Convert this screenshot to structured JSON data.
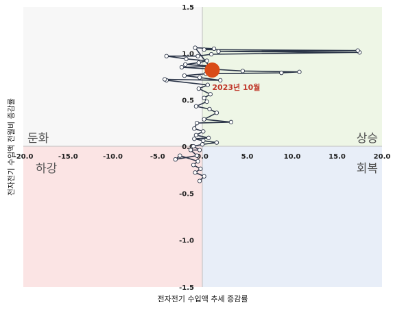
{
  "chart_data": {
    "type": "scatter",
    "title": "",
    "xlabel": "전자전기 수입액 추세 증감률",
    "ylabel": "전자전기 수입액 전월비 증감률",
    "xlim": [
      -20,
      20
    ],
    "ylim": [
      -1.5,
      1.5
    ],
    "x_ticks": [
      "-20.0",
      "-15.0",
      "-10.0",
      "-5.0",
      "0.0",
      "5.0",
      "10.0",
      "15.0",
      "20.0"
    ],
    "y_ticks": [
      "1.5",
      "1.0",
      "0.5",
      "0.0",
      "-0.5",
      "-1.0",
      "-1.5"
    ],
    "x_tick_values": [
      -20,
      -15,
      -10,
      -5,
      0,
      5,
      10,
      15,
      20
    ],
    "y_tick_values": [
      1.5,
      1.0,
      0.5,
      0.0,
      -0.5,
      -1.0,
      -1.5
    ],
    "grid": false,
    "quadrants": {
      "top_left": {
        "label": "둔화",
        "color": "#f7f7f7"
      },
      "top_right": {
        "label": "상승",
        "color": "#eef6e6"
      },
      "bottom_left": {
        "label": "하강",
        "color": "#fbe4e4"
      },
      "bottom_right": {
        "label": "회복",
        "color": "#e8eef8"
      }
    },
    "series": [
      {
        "color": "#2b3548",
        "points": [
          [
            -0.3,
            -0.37
          ],
          [
            0.2,
            -0.32
          ],
          [
            -0.8,
            -0.28
          ],
          [
            -0.2,
            -0.24
          ],
          [
            -1.0,
            -0.2
          ],
          [
            -0.5,
            -0.16
          ],
          [
            -2.5,
            -0.1
          ],
          [
            -3.0,
            -0.14
          ],
          [
            -0.6,
            -0.1
          ],
          [
            -1.3,
            -0.04
          ],
          [
            -0.3,
            -0.04
          ],
          [
            -1.0,
            0.0
          ],
          [
            0.0,
            0.02
          ],
          [
            1.6,
            0.04
          ],
          [
            0.1,
            0.06
          ],
          [
            -0.9,
            0.08
          ],
          [
            0.7,
            0.09
          ],
          [
            -0.7,
            0.12
          ],
          [
            0.1,
            0.16
          ],
          [
            -0.9,
            0.19
          ],
          [
            -0.6,
            0.25
          ],
          [
            3.2,
            0.26
          ],
          [
            0.2,
            0.29
          ],
          [
            1.6,
            0.36
          ],
          [
            0.8,
            0.4
          ],
          [
            -0.7,
            0.43
          ],
          [
            0.5,
            0.48
          ],
          [
            0.2,
            0.52
          ],
          [
            0.9,
            0.56
          ],
          [
            -0.4,
            0.62
          ],
          [
            0.6,
            0.66
          ],
          [
            -4.0,
            0.71
          ],
          [
            -4.2,
            0.72
          ],
          [
            2.0,
            0.71
          ],
          [
            -0.3,
            0.74
          ],
          [
            -2.0,
            0.76
          ],
          [
            0.4,
            0.78
          ],
          [
            8.8,
            0.79
          ],
          [
            10.8,
            0.8
          ],
          [
            4.5,
            0.81
          ],
          [
            -2.3,
            0.85
          ],
          [
            1.4,
            0.86
          ],
          [
            -1.9,
            0.88
          ],
          [
            -0.4,
            0.9
          ],
          [
            0.5,
            0.92
          ],
          [
            -1.8,
            0.94
          ],
          [
            -4.0,
            0.97
          ],
          [
            -0.5,
            0.97
          ],
          [
            1.0,
            0.99
          ],
          [
            17.5,
            1.01
          ],
          [
            1.8,
            1.02
          ],
          [
            17.3,
            1.03
          ],
          [
            0.2,
            1.04
          ],
          [
            1.3,
            1.05
          ],
          [
            -0.8,
            1.06
          ],
          [
            1.1,
            0.82
          ]
        ]
      }
    ],
    "highlight": {
      "label": "2023년 10월",
      "x": 1.1,
      "y": 0.82,
      "color": "#d94b16"
    }
  }
}
